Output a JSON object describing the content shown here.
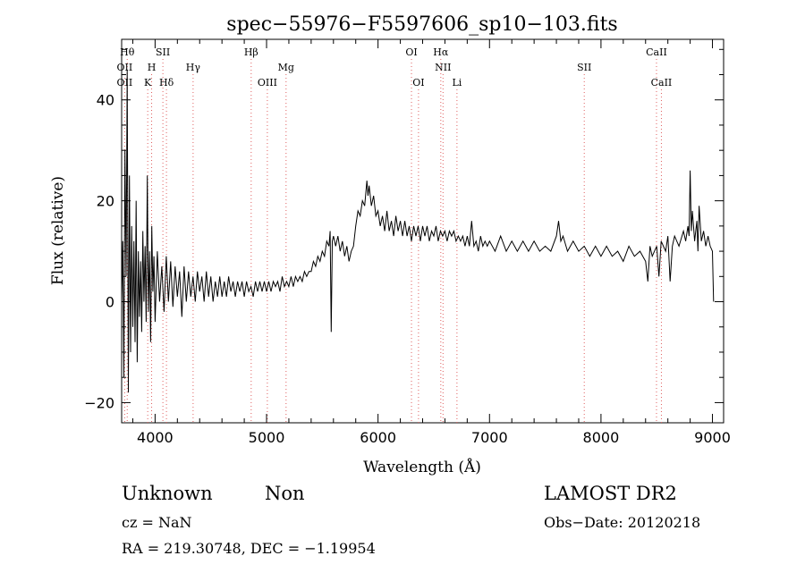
{
  "chart_data": {
    "type": "line",
    "title": "spec−55976−F5597606_sp10−103.fits",
    "xlabel": "Wavelength (Å)",
    "ylabel": "Flux (relative)",
    "xlim": [
      3700,
      9100
    ],
    "ylim": [
      -24,
      52
    ],
    "xticks": [
      4000,
      5000,
      6000,
      7000,
      8000,
      9000
    ],
    "yticks": [
      -20,
      0,
      20,
      40
    ],
    "ytick_labels": [
      "−20",
      "0",
      "20",
      "40"
    ],
    "grid": false,
    "series": [
      {
        "points": [
          [
            3700,
            0
          ],
          [
            3710,
            12
          ],
          [
            3720,
            -15
          ],
          [
            3730,
            30
          ],
          [
            3740,
            5
          ],
          [
            3750,
            46
          ],
          [
            3760,
            -18
          ],
          [
            3770,
            25
          ],
          [
            3780,
            -10
          ],
          [
            3790,
            15
          ],
          [
            3800,
            -5
          ],
          [
            3810,
            12
          ],
          [
            3820,
            -8
          ],
          [
            3830,
            20
          ],
          [
            3840,
            -12
          ],
          [
            3850,
            10
          ],
          [
            3860,
            -3
          ],
          [
            3870,
            8
          ],
          [
            3880,
            -6
          ],
          [
            3890,
            14
          ],
          [
            3900,
            0
          ],
          [
            3910,
            11
          ],
          [
            3920,
            -4
          ],
          [
            3930,
            25
          ],
          [
            3940,
            -2
          ],
          [
            3950,
            10
          ],
          [
            3960,
            -8
          ],
          [
            3970,
            15
          ],
          [
            3980,
            2
          ],
          [
            3990,
            9
          ],
          [
            4000,
            -4
          ],
          [
            4020,
            10
          ],
          [
            4040,
            0
          ],
          [
            4060,
            7
          ],
          [
            4080,
            -2
          ],
          [
            4100,
            9
          ],
          [
            4120,
            0
          ],
          [
            4140,
            8
          ],
          [
            4160,
            -1
          ],
          [
            4180,
            7
          ],
          [
            4200,
            1
          ],
          [
            4220,
            6
          ],
          [
            4240,
            -3
          ],
          [
            4260,
            7
          ],
          [
            4280,
            0
          ],
          [
            4300,
            6
          ],
          [
            4320,
            1
          ],
          [
            4340,
            5
          ],
          [
            4360,
            0
          ],
          [
            4380,
            6
          ],
          [
            4400,
            2
          ],
          [
            4420,
            5
          ],
          [
            4440,
            0
          ],
          [
            4460,
            6
          ],
          [
            4480,
            1
          ],
          [
            4500,
            5
          ],
          [
            4520,
            0
          ],
          [
            4540,
            4
          ],
          [
            4560,
            1
          ],
          [
            4580,
            5
          ],
          [
            4600,
            1
          ],
          [
            4620,
            4
          ],
          [
            4640,
            1
          ],
          [
            4660,
            5
          ],
          [
            4680,
            2
          ],
          [
            4700,
            4
          ],
          [
            4720,
            1
          ],
          [
            4740,
            4
          ],
          [
            4760,
            2
          ],
          [
            4780,
            4
          ],
          [
            4800,
            1
          ],
          [
            4820,
            4
          ],
          [
            4840,
            2
          ],
          [
            4860,
            3
          ],
          [
            4880,
            1
          ],
          [
            4900,
            4
          ],
          [
            4920,
            2
          ],
          [
            4940,
            4
          ],
          [
            4960,
            2
          ],
          [
            4980,
            4
          ],
          [
            5000,
            2
          ],
          [
            5020,
            4
          ],
          [
            5040,
            2
          ],
          [
            5060,
            4
          ],
          [
            5080,
            3
          ],
          [
            5100,
            4
          ],
          [
            5120,
            2
          ],
          [
            5140,
            5
          ],
          [
            5160,
            3
          ],
          [
            5180,
            4
          ],
          [
            5200,
            3
          ],
          [
            5220,
            5
          ],
          [
            5240,
            3
          ],
          [
            5260,
            5
          ],
          [
            5280,
            4
          ],
          [
            5300,
            5
          ],
          [
            5320,
            4
          ],
          [
            5340,
            6
          ],
          [
            5360,
            5
          ],
          [
            5380,
            6
          ],
          [
            5400,
            6
          ],
          [
            5420,
            8
          ],
          [
            5440,
            7
          ],
          [
            5460,
            9
          ],
          [
            5480,
            8
          ],
          [
            5500,
            10
          ],
          [
            5520,
            9
          ],
          [
            5540,
            12
          ],
          [
            5560,
            11
          ],
          [
            5570,
            14
          ],
          [
            5580,
            -6
          ],
          [
            5590,
            12
          ],
          [
            5600,
            13
          ],
          [
            5620,
            11
          ],
          [
            5640,
            13
          ],
          [
            5660,
            10
          ],
          [
            5680,
            12
          ],
          [
            5700,
            9
          ],
          [
            5720,
            11
          ],
          [
            5740,
            8
          ],
          [
            5760,
            10
          ],
          [
            5780,
            11
          ],
          [
            5800,
            15
          ],
          [
            5820,
            18
          ],
          [
            5840,
            17
          ],
          [
            5860,
            20
          ],
          [
            5880,
            19
          ],
          [
            5900,
            24
          ],
          [
            5910,
            21
          ],
          [
            5920,
            23
          ],
          [
            5940,
            19
          ],
          [
            5960,
            21
          ],
          [
            5980,
            17
          ],
          [
            6000,
            18
          ],
          [
            6020,
            15
          ],
          [
            6040,
            17
          ],
          [
            6060,
            14
          ],
          [
            6080,
            18
          ],
          [
            6100,
            14
          ],
          [
            6120,
            16
          ],
          [
            6140,
            13
          ],
          [
            6160,
            17
          ],
          [
            6180,
            14
          ],
          [
            6200,
            16
          ],
          [
            6220,
            13
          ],
          [
            6240,
            16
          ],
          [
            6260,
            13
          ],
          [
            6280,
            15
          ],
          [
            6300,
            12
          ],
          [
            6320,
            15
          ],
          [
            6340,
            13
          ],
          [
            6360,
            15
          ],
          [
            6380,
            12
          ],
          [
            6400,
            15
          ],
          [
            6420,
            13
          ],
          [
            6440,
            15
          ],
          [
            6460,
            12
          ],
          [
            6480,
            14
          ],
          [
            6500,
            13
          ],
          [
            6520,
            15
          ],
          [
            6540,
            12
          ],
          [
            6560,
            14
          ],
          [
            6580,
            13
          ],
          [
            6600,
            14
          ],
          [
            6620,
            12
          ],
          [
            6640,
            14
          ],
          [
            6660,
            13
          ],
          [
            6680,
            14
          ],
          [
            6700,
            12
          ],
          [
            6720,
            13
          ],
          [
            6740,
            12
          ],
          [
            6760,
            13
          ],
          [
            6780,
            11
          ],
          [
            6800,
            13
          ],
          [
            6820,
            11
          ],
          [
            6840,
            16
          ],
          [
            6860,
            11
          ],
          [
            6880,
            12
          ],
          [
            6900,
            10
          ],
          [
            6920,
            13
          ],
          [
            6940,
            11
          ],
          [
            6960,
            12
          ],
          [
            6980,
            11
          ],
          [
            7000,
            12
          ],
          [
            7050,
            10
          ],
          [
            7100,
            13
          ],
          [
            7150,
            10
          ],
          [
            7200,
            12
          ],
          [
            7250,
            10
          ],
          [
            7300,
            12
          ],
          [
            7350,
            10
          ],
          [
            7400,
            12
          ],
          [
            7450,
            10
          ],
          [
            7500,
            11
          ],
          [
            7550,
            10
          ],
          [
            7600,
            13
          ],
          [
            7620,
            16
          ],
          [
            7640,
            12
          ],
          [
            7660,
            13
          ],
          [
            7700,
            10
          ],
          [
            7750,
            12
          ],
          [
            7800,
            10
          ],
          [
            7850,
            11
          ],
          [
            7900,
            9
          ],
          [
            7950,
            11
          ],
          [
            8000,
            9
          ],
          [
            8050,
            11
          ],
          [
            8100,
            9
          ],
          [
            8150,
            10
          ],
          [
            8200,
            8
          ],
          [
            8250,
            11
          ],
          [
            8300,
            9
          ],
          [
            8350,
            10
          ],
          [
            8400,
            8
          ],
          [
            8420,
            4
          ],
          [
            8440,
            11
          ],
          [
            8460,
            9
          ],
          [
            8500,
            11
          ],
          [
            8520,
            5
          ],
          [
            8540,
            12
          ],
          [
            8580,
            10
          ],
          [
            8600,
            13
          ],
          [
            8620,
            4
          ],
          [
            8640,
            11
          ],
          [
            8660,
            13
          ],
          [
            8700,
            11
          ],
          [
            8740,
            14
          ],
          [
            8760,
            12
          ],
          [
            8780,
            15
          ],
          [
            8790,
            13
          ],
          [
            8800,
            26
          ],
          [
            8810,
            14
          ],
          [
            8820,
            18
          ],
          [
            8840,
            12
          ],
          [
            8860,
            16
          ],
          [
            8870,
            10
          ],
          [
            8880,
            19
          ],
          [
            8900,
            12
          ],
          [
            8920,
            14
          ],
          [
            8940,
            11
          ],
          [
            8960,
            13
          ],
          [
            8980,
            11
          ],
          [
            9000,
            10
          ],
          [
            9010,
            0
          ]
        ]
      }
    ],
    "line_markers": [
      {
        "label": "Hθ",
        "x": 3750,
        "row": 0
      },
      {
        "label": "SII",
        "x": 4070,
        "row": 0
      },
      {
        "label": "Hβ",
        "x": 4862,
        "row": 0
      },
      {
        "label": "OI",
        "x": 6300,
        "row": 0
      },
      {
        "label": "Hα",
        "x": 6563,
        "row": 0
      },
      {
        "label": "CaII",
        "x": 8498,
        "row": 0
      },
      {
        "label": "OII",
        "x": 3727,
        "row": 1
      },
      {
        "label": "H",
        "x": 3969,
        "row": 1
      },
      {
        "label": "Hγ",
        "x": 4341,
        "row": 1
      },
      {
        "label": "Mg",
        "x": 5175,
        "row": 1
      },
      {
        "label": "NII",
        "x": 6583,
        "row": 1
      },
      {
        "label": "SII",
        "x": 7850,
        "row": 1
      },
      {
        "label": "OII",
        "x": 3727,
        "row": 2
      },
      {
        "label": "K",
        "x": 3934,
        "row": 2
      },
      {
        "label": "Hδ",
        "x": 4102,
        "row": 2
      },
      {
        "label": "OIII",
        "x": 5007,
        "row": 2
      },
      {
        "label": "OI",
        "x": 6363,
        "row": 2
      },
      {
        "label": "Li",
        "x": 6708,
        "row": 2
      },
      {
        "label": "CaII",
        "x": 8542,
        "row": 2
      }
    ]
  },
  "info": {
    "class": "Unknown",
    "subclass": "Non",
    "survey": "LAMOST DR2",
    "cz": "cz = NaN",
    "obs_date": "Obs−Date: 20120218",
    "coords": "RA = 219.30748, DEC =  −1.19954"
  }
}
